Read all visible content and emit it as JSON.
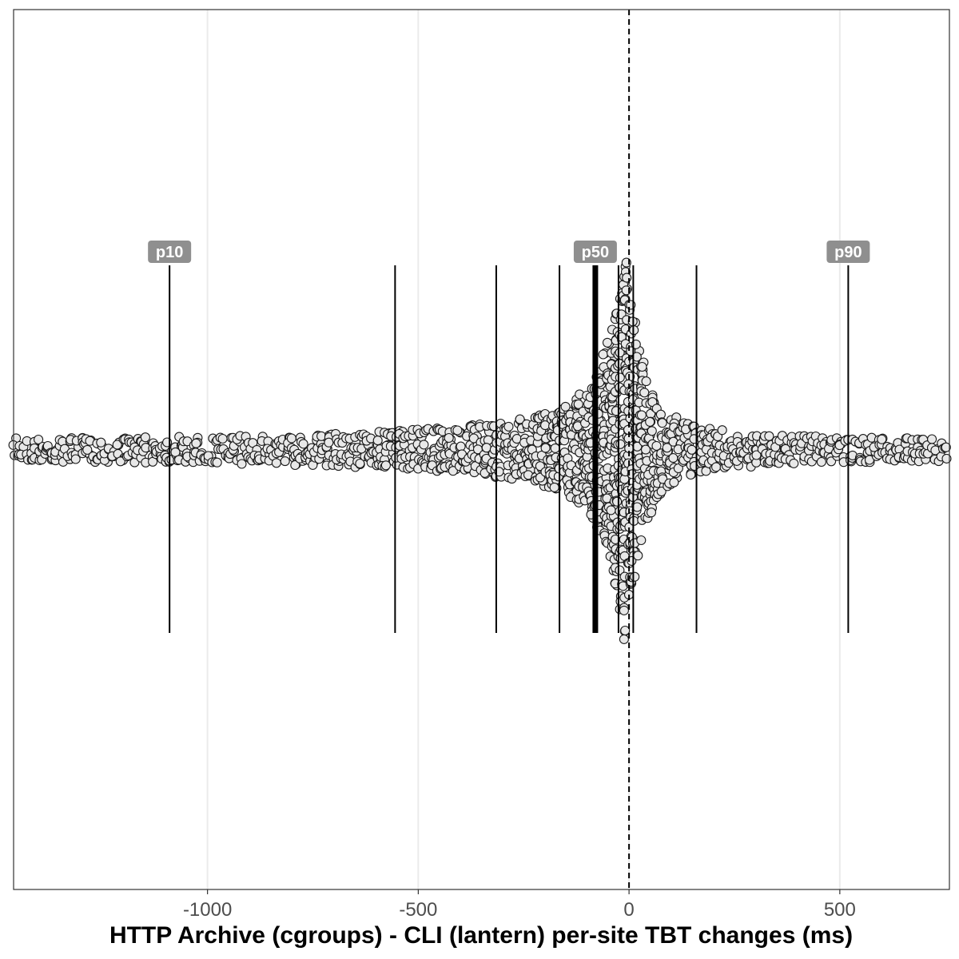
{
  "chart_data": {
    "type": "scatter",
    "subtype": "beeswarm",
    "title": "",
    "xlabel": "HTTP Archive (cgroups) - CLI (lantern) per-site TBT changes (ms)",
    "ylabel": "",
    "xlim": [
      -1460,
      760
    ],
    "x_ticks": [
      -1000,
      -500,
      0,
      500
    ],
    "x_tick_labels": [
      "-1000",
      "-500",
      "0",
      "500"
    ],
    "grid": "vertical major gridlines",
    "reference_line": {
      "x": 0,
      "style": "dashed"
    },
    "percentile_lines": [
      {
        "label": "p10",
        "x": -1090,
        "weight": "normal"
      },
      {
        "label": "",
        "x": -555,
        "weight": "normal"
      },
      {
        "label": "",
        "x": -315,
        "weight": "normal"
      },
      {
        "label": "",
        "x": -165,
        "weight": "normal"
      },
      {
        "label": "p50",
        "x": -80,
        "weight": "bold"
      },
      {
        "label": "",
        "x": -25,
        "weight": "normal"
      },
      {
        "label": "",
        "x": 10,
        "weight": "normal"
      },
      {
        "label": "",
        "x": 160,
        "weight": "normal"
      },
      {
        "label": "p90",
        "x": 520,
        "weight": "normal"
      }
    ],
    "point_fill": "#e8e8e8",
    "point_stroke": "#1a1a1a",
    "series": [
      {
        "distribution_peak_x": -5,
        "x_range": [
          -1460,
          760
        ]
      }
    ]
  }
}
